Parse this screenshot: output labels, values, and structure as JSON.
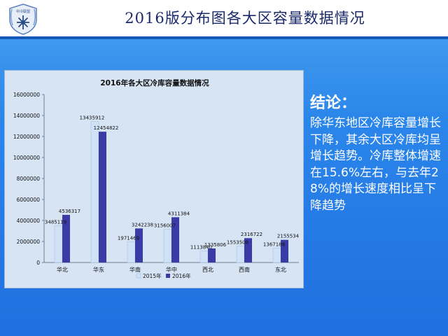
{
  "header": {
    "title": "2016版分布图各大区容量数据情况",
    "logo_text": "中冷联盟"
  },
  "conclusion": {
    "heading": "结论：",
    "body": "除华东地区冷库容量增长下降，其余大区冷库均呈增长趋势。冷库整体增速在15.6%左右，与去年28%的增长速度相比呈下降趋势"
  },
  "chart_data": {
    "type": "bar",
    "title": "2016年各大区冷库容量数据情况",
    "xlabel": "",
    "ylabel": "",
    "categories": [
      "华北",
      "华东",
      "华南",
      "华中",
      "西北",
      "西南",
      "东北"
    ],
    "series": [
      {
        "name": "2015年",
        "color": "#cfe2f7",
        "values": [
          3485119,
          13435912,
          1971469,
          3156007,
          1113840,
          1553508,
          1367188
        ]
      },
      {
        "name": "2016年",
        "color": "#3b3ba6",
        "values": [
          4536317,
          12454822,
          3242238,
          4311384,
          1335806,
          2316722,
          2155534
        ]
      }
    ],
    "ylim": [
      0,
      16000000
    ],
    "yticks": [
      "0",
      "2000000",
      "4000000",
      "6000000",
      "8000000",
      "10000000",
      "12000000",
      "14000000",
      "16000000"
    ],
    "grid": false,
    "legend": "bottom"
  }
}
